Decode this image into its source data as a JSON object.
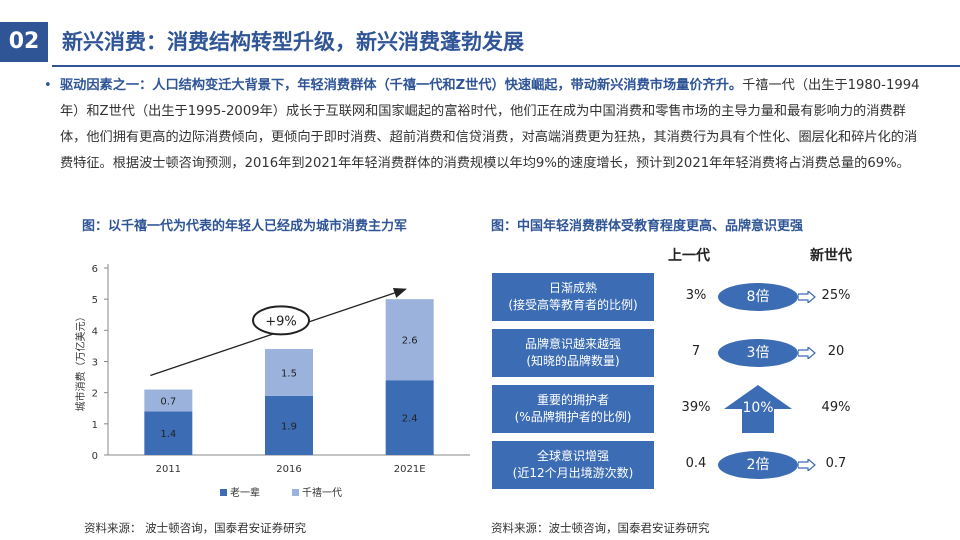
{
  "header": {
    "number": "02",
    "title": "新兴消费：消费结构转型升级，新兴消费蓬勃发展"
  },
  "paragraph": {
    "lead": "驱动因素之一：人口结构变迁大背景下，年轻消费群体（千禧一代和Z世代）快速崛起，带动新兴消费市场量价齐升。",
    "body": "千禧一代（出生于1980-1994年）和Z世代（出生于1995-2009年）成长于互联网和国家崛起的富裕时代，他们正在成为中国消费和零售市场的主导力量和最有影响力的消费群体，他们拥有更高的边际消费倾向，更倾向于即时消费、超前消费和信贷消费，对高端消费更为狂热，其消费行为具有个性化、圈层化和碎片化的消费特征。根据波士顿咨询预测，2016年到2021年年轻消费群体的消费规模以年均9%的速度增长，预计到2021年年轻消费将占消费总量的69%。"
  },
  "figures": {
    "left_title": "图：以千禧一代为代表的年轻人已经成为城市消费主力军",
    "right_title": "图：中国年轻消费群体受教育程度更高、品牌意识更强",
    "left_source": "资料来源：  波士顿咨询，国泰君安证券研究",
    "right_source": "资料来源：波士顿咨询，国泰君安证券研究"
  },
  "chart_data": {
    "type": "bar",
    "stacked": true,
    "categories": [
      "2011",
      "2016",
      "2021E"
    ],
    "series": [
      {
        "name": "老一辈",
        "values": [
          1.4,
          1.9,
          2.4
        ],
        "color": "#3c6cb4"
      },
      {
        "name": "千禧一代",
        "values": [
          0.7,
          1.5,
          2.6
        ],
        "color": "#9bb3dc"
      }
    ],
    "ylabel": "城市消费（万亿美元）",
    "ylim": [
      0,
      6
    ],
    "yticks": [
      0,
      1,
      2,
      3,
      4,
      5,
      6
    ],
    "growth_annotation": "+9%",
    "legend_position": "bottom"
  },
  "comparison": {
    "old_header": "上一代",
    "new_header": "新世代",
    "rows": [
      {
        "label1": "日渐成熟",
        "label2": "(接受高等教育者的比例)",
        "old": "3%",
        "multiplier": "8倍",
        "new": "25%",
        "shape": "ellipse"
      },
      {
        "label1": "品牌意识越来越强",
        "label2": "(知晓的品牌数量)",
        "old": "7",
        "multiplier": "3倍",
        "new": "20",
        "shape": "ellipse"
      },
      {
        "label1": "重要的拥护者",
        "label2": "(%品牌拥护者的比例)",
        "old": "39%",
        "multiplier": "10%",
        "new": "49%",
        "shape": "up-arrow"
      },
      {
        "label1": "全球意识增强",
        "label2": "(近12个月出境游次数)",
        "old": "0.4",
        "multiplier": "2倍",
        "new": "0.7",
        "shape": "ellipse"
      }
    ]
  },
  "colors": {
    "primary": "#2f5597",
    "bar_dark": "#3c6cb4",
    "bar_light": "#9bb3dc"
  }
}
